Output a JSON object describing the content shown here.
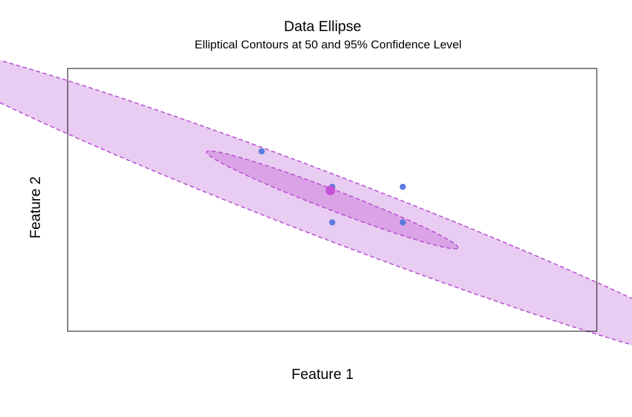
{
  "chart_data": {
    "type": "scatter",
    "title": "Data Ellipse",
    "subtitle": "Elliptical Contours at 50 and 95% Confidence Level",
    "xlabel": "Feature 1",
    "ylabel": "Feature 2",
    "xlim": [
      -4.5,
      10.5
    ],
    "ylim": [
      -8.6,
      2.5
    ],
    "grid": false,
    "axes_ticks": false,
    "points": [
      {
        "x": 1,
        "y": -1.0
      },
      {
        "x": 3,
        "y": -2.5
      },
      {
        "x": 5,
        "y": -2.5
      },
      {
        "x": 3,
        "y": -4.0
      },
      {
        "x": 5,
        "y": -4.0
      }
    ],
    "center": {
      "x": 2.95,
      "y": -2.65
    },
    "ellipses": [
      {
        "level": 0.95,
        "center": {
          "x": 2.85,
          "y": -3.3
        },
        "semi_axis_major": 13.6,
        "semi_axis_minor": 1.25,
        "major_axis_direction": {
          "dx": 0.868,
          "dy": -0.497
        }
      },
      {
        "level": 0.5,
        "center": {
          "x": 3.0,
          "y": -3.05
        },
        "semi_axis_major": 4.1,
        "semi_axis_minor": 0.4,
        "major_axis_direction": {
          "dx": 0.868,
          "dy": -0.497
        }
      }
    ],
    "colors": {
      "ellipse_fill": "#e9ccf1",
      "ellipse_inner_fill": "#d9a3e6",
      "ellipse_stroke": "#b74fd2",
      "point": "#5a7be0",
      "center_point": "#c653d6",
      "frame": "#000000"
    }
  }
}
